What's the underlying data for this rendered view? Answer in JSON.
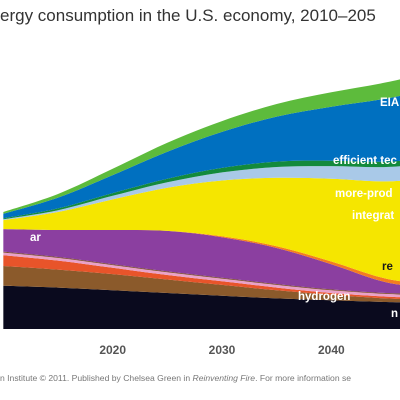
{
  "chart_data": {
    "type": "area",
    "stacked": true,
    "title": "ergy consumption in the U.S. economy, 2010–205",
    "x_ticks": [
      2020,
      2030,
      2040
    ],
    "x": [
      2010,
      2015,
      2020,
      2025,
      2030,
      2035,
      2040,
      2045,
      2050
    ],
    "grid": false,
    "series": [
      {
        "name": "",
        "color": "#0a0a1e",
        "values": [
          48,
          46,
          43,
          40,
          37,
          34,
          32,
          30,
          29
        ]
      },
      {
        "name": "",
        "color": "#8b5a2b",
        "values": [
          22,
          20,
          18,
          15,
          12,
          9,
          6,
          4,
          3
        ]
      },
      {
        "name": "",
        "color": "#e8542a",
        "values": [
          12,
          10,
          7,
          5,
          4,
          3,
          2,
          2,
          2
        ]
      },
      {
        "name": "",
        "color": "#e9a1c8",
        "values": [
          3,
          3,
          3,
          3,
          3,
          3,
          3,
          3,
          3
        ]
      },
      {
        "name": "hydrogen",
        "color": "#7a4a2a",
        "values": [
          1,
          1,
          1,
          1,
          1,
          1,
          1,
          1,
          2
        ]
      },
      {
        "name": "",
        "color": "#8b3fa0",
        "values": [
          25,
          30,
          38,
          45,
          45,
          40,
          28,
          12,
          5
        ]
      },
      {
        "name": "",
        "color": "#f47c20",
        "values": [
          0,
          0,
          0,
          0,
          1,
          2,
          3,
          4,
          4
        ]
      },
      {
        "name": "re",
        "color": "#f5e600",
        "values": [
          10,
          20,
          34,
          48,
          62,
          76,
          92,
          108,
          120
        ]
      },
      {
        "name": "integrat",
        "color": "#a9c9e8",
        "values": [
          1,
          2,
          4,
          6,
          9,
          12,
          14,
          16,
          17
        ]
      },
      {
        "name": "more-prod",
        "color": "#138a3c",
        "values": [
          1,
          2,
          3,
          4,
          5,
          6,
          6,
          6,
          6
        ]
      },
      {
        "name": "efficient tec",
        "color": "#0070c0",
        "values": [
          5,
          12,
          20,
          30,
          40,
          50,
          60,
          70,
          78
        ]
      },
      {
        "name": "EIA",
        "color": "#5dbb3c",
        "values": [
          2,
          4,
          7,
          10,
          12,
          14,
          16,
          18,
          19
        ]
      }
    ],
    "labels": [
      {
        "text": "EIA",
        "series": 11,
        "color": "#ffffff"
      },
      {
        "text": "efficient tec",
        "series": 10,
        "color": "#ffffff"
      },
      {
        "text": "more-prod",
        "series": 9,
        "color": "#ffffff"
      },
      {
        "text": "integrat",
        "series": 8,
        "color": "#ffffff"
      },
      {
        "text": "re",
        "series": 7,
        "color": "#1a1a1a"
      },
      {
        "text": "hydrogen",
        "series": 5,
        "color": "#ffffff"
      },
      {
        "text": "n",
        "series": 5,
        "color": "#ffffff"
      },
      {
        "text": "ar",
        "series": 1,
        "color": "#ffffff"
      }
    ]
  },
  "footer": {
    "prefix": "n Institute © 2011. Published by Chelsea Green in ",
    "book": "Reinventing Fire",
    "suffix": ". For more information se"
  }
}
